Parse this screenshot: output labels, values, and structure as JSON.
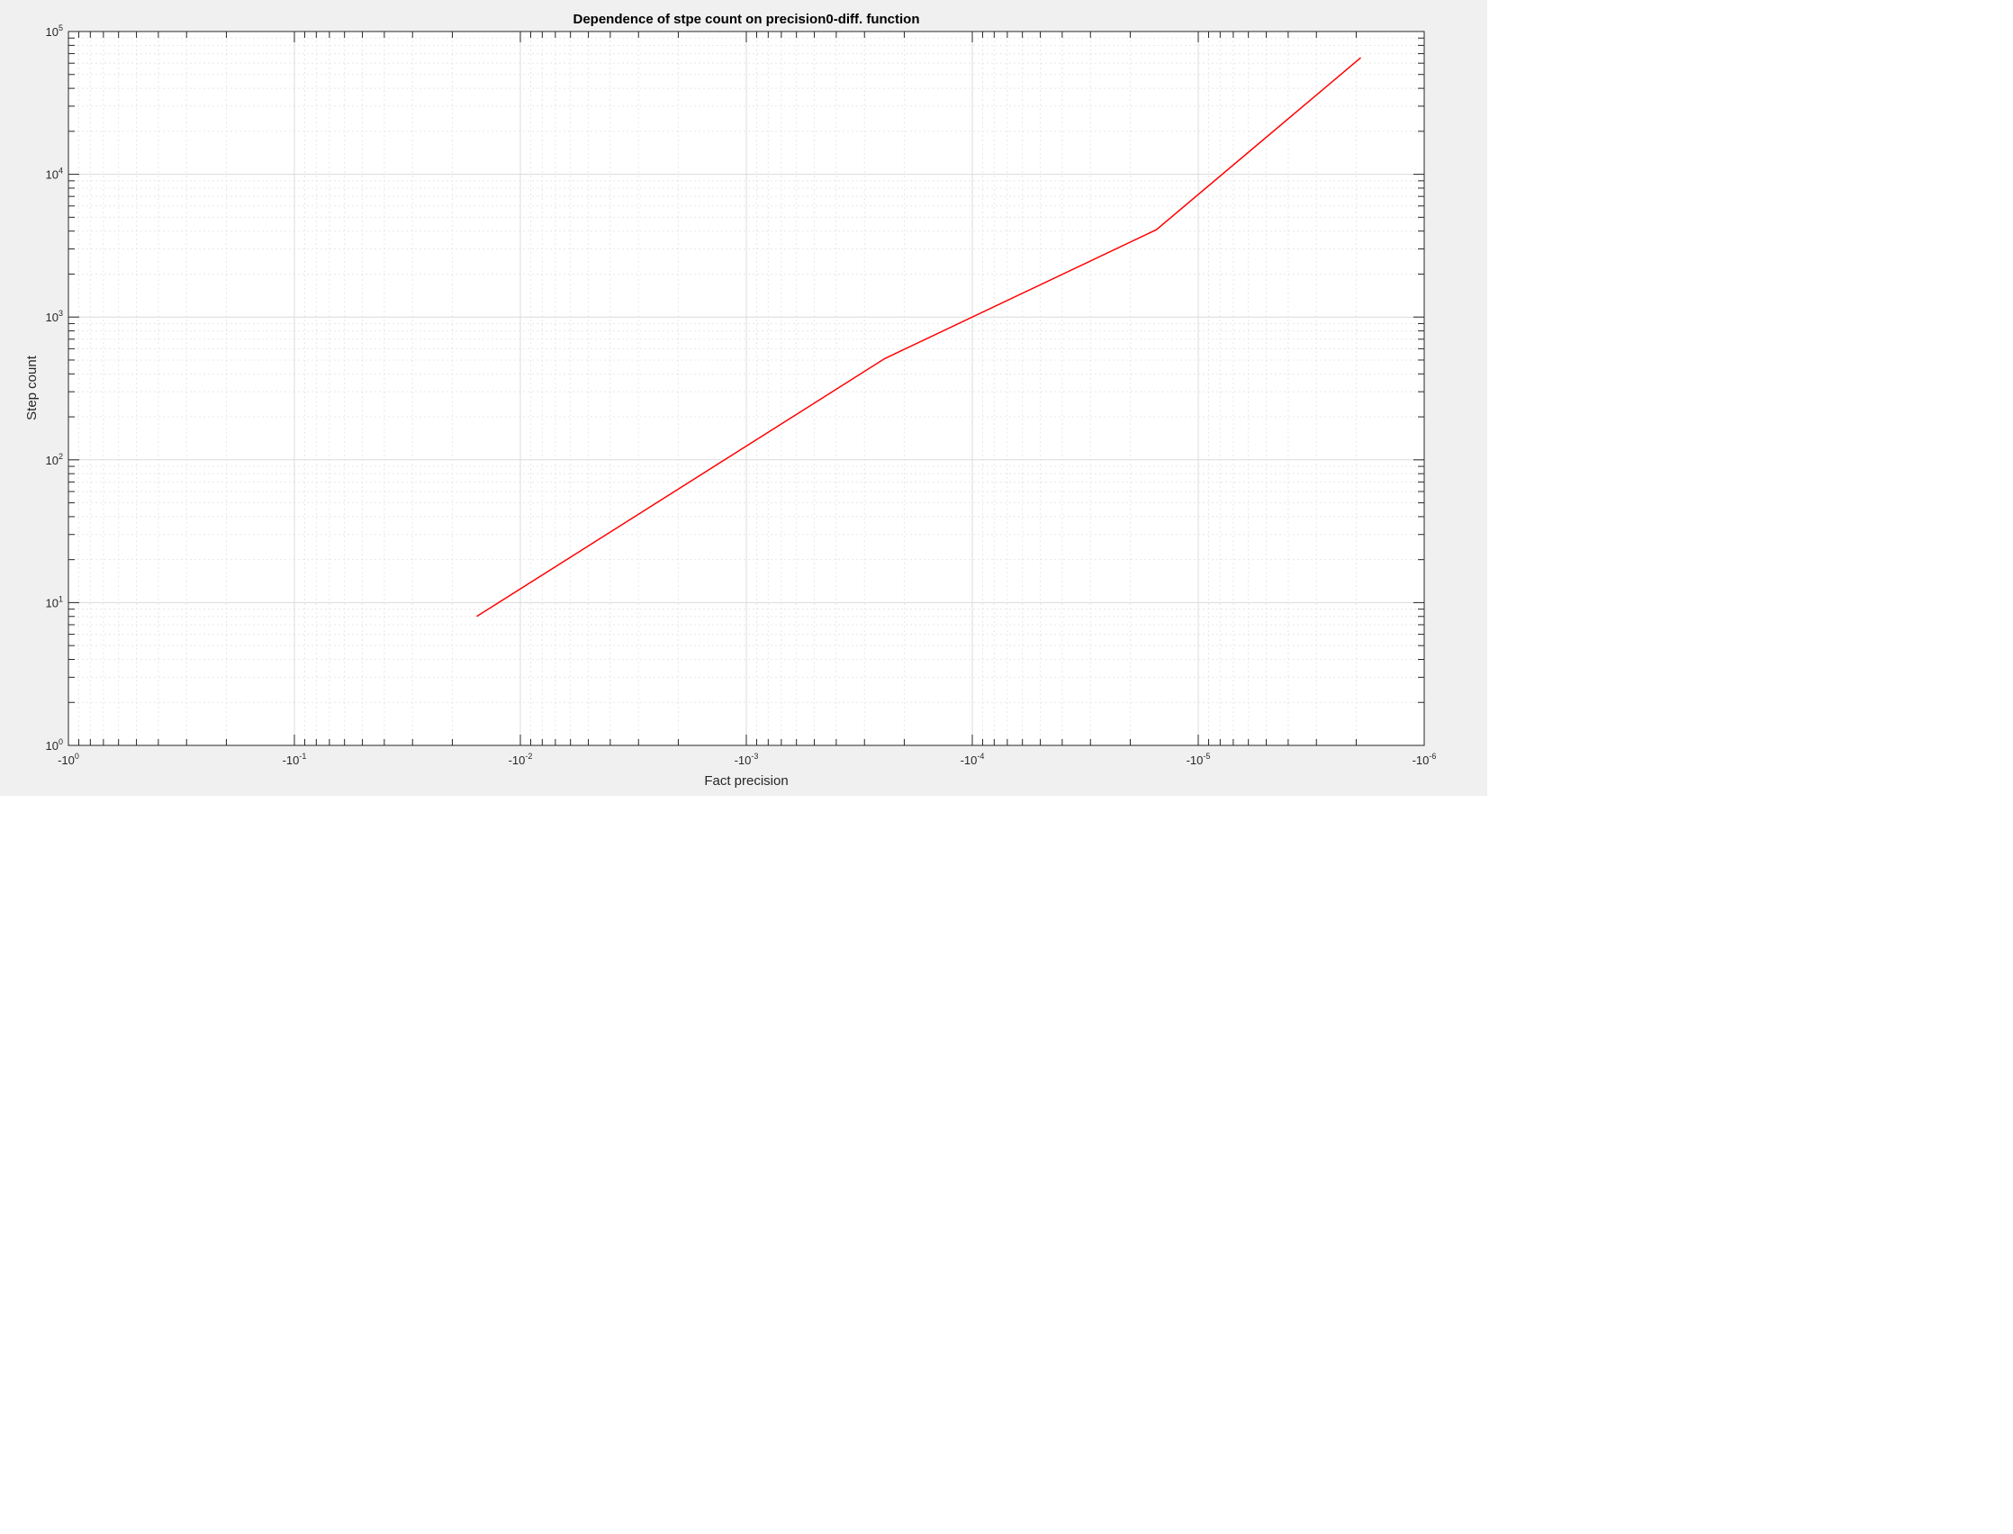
{
  "chart_data": {
    "type": "line",
    "title": "Dependence of stpe count on precision0-diff. function",
    "xlabel": "Fact precision",
    "ylabel": "Step count",
    "x_scale": "log-negative",
    "y_scale": "log",
    "xlim": [
      -1,
      -1e-06
    ],
    "ylim": [
      1,
      100000
    ],
    "grid": true,
    "x_ticks": [
      {
        "base": "-10",
        "exp": "0"
      },
      {
        "base": "-10",
        "exp": "-1"
      },
      {
        "base": "-10",
        "exp": "-2"
      },
      {
        "base": "-10",
        "exp": "-3"
      },
      {
        "base": "-10",
        "exp": "-4"
      },
      {
        "base": "-10",
        "exp": "-5"
      },
      {
        "base": "-10",
        "exp": "-6"
      }
    ],
    "y_ticks": [
      {
        "base": "10",
        "exp": "0"
      },
      {
        "base": "10",
        "exp": "1"
      },
      {
        "base": "10",
        "exp": "2"
      },
      {
        "base": "10",
        "exp": "3"
      },
      {
        "base": "10",
        "exp": "4"
      },
      {
        "base": "10",
        "exp": "5"
      }
    ],
    "series": [
      {
        "color": "#ff0000",
        "x": [
          -0.0156,
          -0.000244,
          -1.53e-05,
          -1.91e-06
        ],
        "y": [
          8,
          512,
          4096,
          65536
        ]
      }
    ]
  }
}
